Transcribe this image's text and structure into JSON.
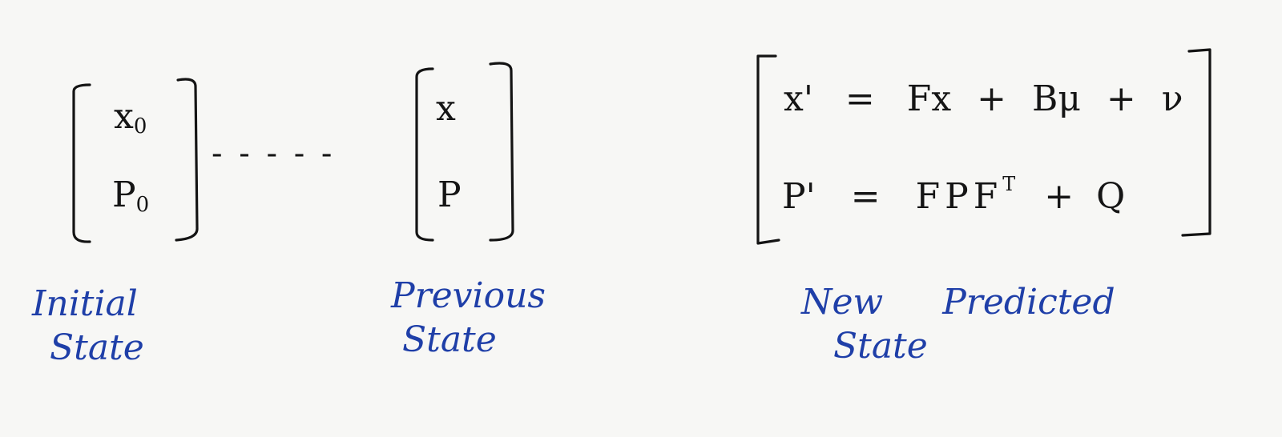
{
  "initial": {
    "x": "x",
    "x_sub": "0",
    "p": "P",
    "p_sub": "0",
    "label_line1": "Initial",
    "label_line2": "State"
  },
  "connector": "- - - - -",
  "previous": {
    "x": "x",
    "p": "P",
    "label_line1": "Previous",
    "label_line2": "State"
  },
  "predicted": {
    "eq1_lhs": "x'",
    "eq1_eq": "=",
    "eq1_rhs": "Fx + Bμ + ν",
    "eq2_lhs": "P'",
    "eq2_eq": "=",
    "eq2_rhs_main": "FPF",
    "eq2_rhs_sup": "T",
    "eq2_rhs_tail": "+ Q",
    "label_line1": "New Predicted",
    "label_line2": "State"
  },
  "colors": {
    "ink": "#141414",
    "caption_ink": "#1f3fa8",
    "paper": "#f7f7f5"
  }
}
